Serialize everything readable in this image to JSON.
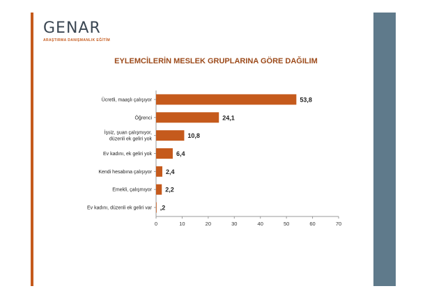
{
  "logo": {
    "name": "GENAR",
    "subtitle": "ARAŞTIRMA DANIŞMANLIK EĞİTİM"
  },
  "colors": {
    "accent": "#c55a1c",
    "panel": "#5f7a8b",
    "bar": "#c55a1c"
  },
  "chart_data": {
    "type": "bar",
    "orientation": "horizontal",
    "title": "EYLEMCİLERİN MESLEK GRUPLARINA GÖRE DAĞILIM",
    "categories": [
      [
        "Ücretli, maaşlı çalışıyor"
      ],
      [
        "Öğrenci"
      ],
      [
        "İşsiz, şuan çalışmıyor,",
        "düzenli ek geliri yok"
      ],
      [
        "Ev kadını, ek geliri yok"
      ],
      [
        "Kendi hesabına çalışıyor"
      ],
      [
        "Emekli, çalışmıyor"
      ],
      [
        "Ev kadını, düzenli ek geliri var"
      ]
    ],
    "values": [
      53.8,
      24.1,
      10.8,
      6.4,
      2.4,
      2.2,
      0.2
    ],
    "value_labels": [
      "53,8",
      "24,1",
      "10,8",
      "6,4",
      "2,4",
      "2,2",
      ",2"
    ],
    "xlim": [
      0,
      70
    ],
    "xticks": [
      "0",
      "10",
      "20",
      "30",
      "40",
      "50",
      "60",
      "70"
    ],
    "grid": false,
    "legend": "none"
  }
}
